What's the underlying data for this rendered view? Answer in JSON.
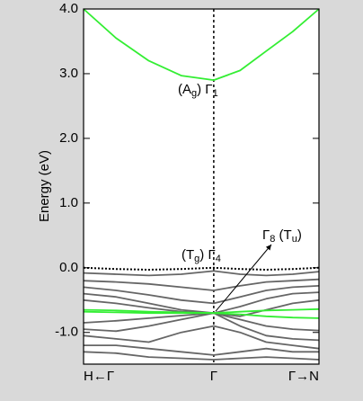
{
  "chart_data": {
    "type": "line",
    "ylabel": "Energy (eV)",
    "x": [
      0,
      0.138,
      0.277,
      0.415,
      0.553,
      0.665,
      0.776,
      0.888,
      1
    ],
    "xlim": [
      0,
      1
    ],
    "xticks": [
      {
        "value": 0,
        "label": "H←Γ"
      },
      {
        "value": 0.553,
        "label": "Γ"
      },
      {
        "value": 1,
        "label": "Γ→N"
      }
    ],
    "ylim": [
      -1.49,
      4.0
    ],
    "yticks": [
      {
        "value": -1,
        "label": "-1.0"
      },
      {
        "value": 0,
        "label": "0.0"
      },
      {
        "value": 1,
        "label": "1.0"
      },
      {
        "value": 2,
        "label": "2.0"
      },
      {
        "value": 3,
        "label": "3.0"
      },
      {
        "value": 4,
        "label": "4.0"
      }
    ],
    "series": [
      {
        "color": "#000000",
        "style": "dotted",
        "values": [
          0,
          -0.02,
          -0.03,
          -0.02,
          0,
          -0.02,
          -0.03,
          -0.02,
          0
        ]
      },
      {
        "color": "#666666",
        "values": [
          -0.08,
          -0.1,
          -0.12,
          -0.1,
          -0.05,
          -0.1,
          -0.12,
          -0.1,
          -0.06
        ]
      },
      {
        "color": "#666666",
        "values": [
          -0.2,
          -0.22,
          -0.25,
          -0.3,
          -0.35,
          -0.28,
          -0.22,
          -0.2,
          -0.18
        ]
      },
      {
        "color": "#666666",
        "values": [
          -0.3,
          -0.35,
          -0.42,
          -0.5,
          -0.55,
          -0.45,
          -0.35,
          -0.3,
          -0.28
        ]
      },
      {
        "color": "#666666",
        "values": [
          -0.4,
          -0.45,
          -0.55,
          -0.65,
          -0.7,
          -0.6,
          -0.48,
          -0.4,
          -0.38
        ]
      },
      {
        "color": "#666666",
        "values": [
          -0.5,
          -0.55,
          -0.62,
          -0.68,
          -0.7,
          -0.75,
          -0.65,
          -0.55,
          -0.5
        ]
      },
      {
        "color": "#666666",
        "values": [
          -0.85,
          -0.82,
          -0.78,
          -0.74,
          -0.7,
          -0.8,
          -0.9,
          -0.95,
          -0.97
        ]
      },
      {
        "color": "#666666",
        "values": [
          -0.95,
          -0.98,
          -0.9,
          -0.8,
          -0.7,
          -0.9,
          -1.05,
          -1.1,
          -1.12
        ]
      },
      {
        "color": "#666666",
        "values": [
          -1.05,
          -1.1,
          -1.15,
          -1.0,
          -0.9,
          -1.0,
          -1.15,
          -1.2,
          -1.25
        ]
      },
      {
        "color": "#666666",
        "values": [
          -1.2,
          -1.2,
          -1.25,
          -1.3,
          -1.35,
          -1.3,
          -1.25,
          -1.3,
          -1.3
        ]
      },
      {
        "color": "#666666",
        "values": [
          -1.3,
          -1.32,
          -1.38,
          -1.4,
          -1.42,
          -1.4,
          -1.38,
          -1.4,
          -1.42
        ]
      },
      {
        "color": "#33ee33",
        "values": [
          -0.65,
          -0.66,
          -0.68,
          -0.69,
          -0.7,
          -0.68,
          -0.66,
          -0.65,
          -0.64
        ]
      },
      {
        "color": "#33ee33",
        "values": [
          -0.68,
          -0.69,
          -0.7,
          -0.7,
          -0.7,
          -0.72,
          -0.75,
          -0.77,
          -0.78
        ]
      },
      {
        "color": "#33ee33",
        "values": [
          4.0,
          3.55,
          3.2,
          2.97,
          2.9,
          3.05,
          3.35,
          3.65,
          4.0
        ]
      }
    ],
    "annotations": [
      {
        "parts": [
          "(A",
          "g",
          ") Γ",
          "1"
        ]
      },
      {
        "parts": [
          "(T",
          "g",
          ") Γ",
          "4"
        ]
      },
      {
        "parts": [
          "Γ",
          "8",
          " (T",
          "u",
          ")"
        ]
      }
    ]
  }
}
